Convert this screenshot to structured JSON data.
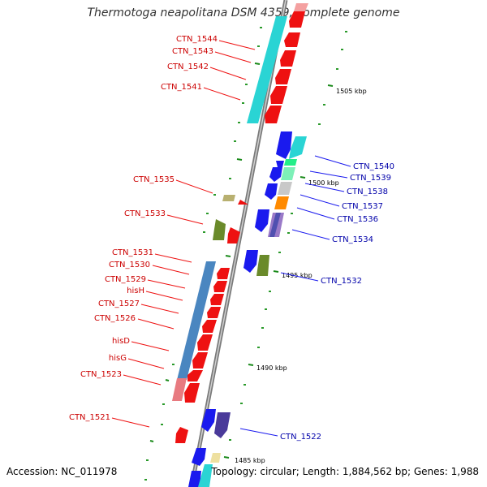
{
  "title": "Thermotoga neapolitana DSM 4359, complete genome",
  "accession": "Accession: NC_011978",
  "summary": "Topology: circular; Length: 1,884,562 bp; Genes: 1,988",
  "colors": {
    "reverse_strand_label": "#cc0000",
    "forward_strand_label": "#0000aa",
    "backbone": "#8a8a8a",
    "tick": "#1a8a1a"
  },
  "ticks": [
    {
      "label": "1505 kbp"
    },
    {
      "label": "1500 kbp"
    },
    {
      "label": "1495 kbp"
    },
    {
      "label": "1490 kbp"
    },
    {
      "label": "1485 kbp"
    }
  ],
  "genes_reverse": [
    {
      "label": "CTN_1544"
    },
    {
      "label": "CTN_1543"
    },
    {
      "label": "CTN_1542"
    },
    {
      "label": "CTN_1541"
    },
    {
      "label": "CTN_1535"
    },
    {
      "label": "CTN_1533"
    },
    {
      "label": "CTN_1531"
    },
    {
      "label": "CTN_1530"
    },
    {
      "label": "CTN_1529"
    },
    {
      "label": "hisH"
    },
    {
      "label": "CTN_1527"
    },
    {
      "label": "CTN_1526"
    },
    {
      "label": "hisD"
    },
    {
      "label": "hisG"
    },
    {
      "label": "CTN_1523"
    },
    {
      "label": "CTN_1521"
    }
  ],
  "genes_forward": [
    {
      "label": "CTN_1540"
    },
    {
      "label": "CTN_1539"
    },
    {
      "label": "CTN_1538"
    },
    {
      "label": "CTN_1537"
    },
    {
      "label": "CTN_1536"
    },
    {
      "label": "CTN_1534"
    },
    {
      "label": "CTN_1532"
    },
    {
      "label": "CTN_1522"
    }
  ]
}
